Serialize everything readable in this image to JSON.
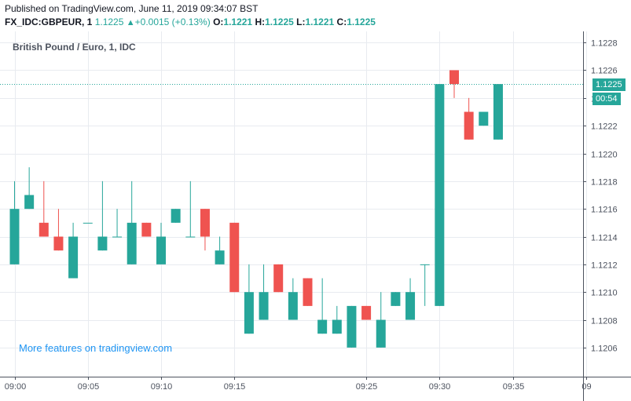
{
  "header": {
    "published": "Published on TradingView.com, June 11, 2019 09:34:07 BST",
    "symbol": "FX_IDC:GBPEUR, 1",
    "last": "1.1225",
    "change": "+0.0015 (+0.13%)",
    "o_label": "O:",
    "o_value": "1.1221",
    "h_label": "H:",
    "h_value": "1.1225",
    "l_label": "L:",
    "l_value": "1.1221",
    "c_label": "C:",
    "c_value": "1.1225"
  },
  "legend": "British Pound / Euro, 1, IDC",
  "promo": "More features on tradingview.com",
  "price_badge": "1.1225",
  "countdown_badge": "00:54",
  "colors": {
    "up": "#26a69a",
    "down": "#ef5350",
    "grid": "#e8ebf0",
    "axis": "#4c525e",
    "promo": "#2196f3"
  },
  "chart_data": {
    "type": "candlestick",
    "title": "British Pound / Euro, 1, IDC",
    "ylim": [
      1.1204,
      1.1229
    ],
    "y_ticks": [
      "1.1206",
      "1.1208",
      "1.1210",
      "1.1212",
      "1.1214",
      "1.1216",
      "1.1218",
      "1.1220",
      "1.1222",
      "1.1224",
      "1.1226",
      "1.1228"
    ],
    "x_ticks": [
      {
        "label": "09:00",
        "index": 0
      },
      {
        "label": "09:05",
        "index": 5
      },
      {
        "label": "09:10",
        "index": 10
      },
      {
        "label": "09:15",
        "index": 15
      },
      {
        "label": "09:25",
        "index": 24
      },
      {
        "label": "09:30",
        "index": 29
      },
      {
        "label": "09:35",
        "index": 34
      },
      {
        "label": "09",
        "index": 39
      }
    ],
    "last_price": 1.1225,
    "grid": true,
    "candles": [
      {
        "o": 1.1212,
        "h": 1.1218,
        "l": 1.1212,
        "c": 1.1216
      },
      {
        "o": 1.1216,
        "h": 1.1219,
        "l": 1.1216,
        "c": 1.1217
      },
      {
        "o": 1.1215,
        "h": 1.1218,
        "l": 1.1214,
        "c": 1.1214
      },
      {
        "o": 1.1214,
        "h": 1.1216,
        "l": 1.1213,
        "c": 1.1213
      },
      {
        "o": 1.1211,
        "h": 1.1215,
        "l": 1.1211,
        "c": 1.1214
      },
      {
        "o": 1.1215,
        "h": 1.1215,
        "l": 1.1215,
        "c": 1.1215
      },
      {
        "o": 1.1213,
        "h": 1.1218,
        "l": 1.1213,
        "c": 1.1214
      },
      {
        "o": 1.1214,
        "h": 1.1216,
        "l": 1.1214,
        "c": 1.1214
      },
      {
        "o": 1.1212,
        "h": 1.1218,
        "l": 1.1212,
        "c": 1.1215
      },
      {
        "o": 1.1215,
        "h": 1.1215,
        "l": 1.1214,
        "c": 1.1214
      },
      {
        "o": 1.1212,
        "h": 1.1215,
        "l": 1.1212,
        "c": 1.1214
      },
      {
        "o": 1.1215,
        "h": 1.1216,
        "l": 1.1215,
        "c": 1.1216
      },
      {
        "o": 1.1214,
        "h": 1.1218,
        "l": 1.1214,
        "c": 1.1214
      },
      {
        "o": 1.1216,
        "h": 1.1216,
        "l": 1.1213,
        "c": 1.1214
      },
      {
        "o": 1.1212,
        "h": 1.1214,
        "l": 1.1212,
        "c": 1.1213
      },
      {
        "o": 1.1215,
        "h": 1.1215,
        "l": 1.121,
        "c": 1.121
      },
      {
        "o": 1.1207,
        "h": 1.1212,
        "l": 1.1207,
        "c": 1.121
      },
      {
        "o": 1.1208,
        "h": 1.1212,
        "l": 1.1208,
        "c": 1.121
      },
      {
        "o": 1.1212,
        "h": 1.1212,
        "l": 1.121,
        "c": 1.121
      },
      {
        "o": 1.1208,
        "h": 1.1211,
        "l": 1.1208,
        "c": 1.121
      },
      {
        "o": 1.1211,
        "h": 1.1211,
        "l": 1.1209,
        "c": 1.1209
      },
      {
        "o": 1.1207,
        "h": 1.1211,
        "l": 1.1207,
        "c": 1.1208
      },
      {
        "o": 1.1207,
        "h": 1.1209,
        "l": 1.1207,
        "c": 1.1208
      },
      {
        "o": 1.1206,
        "h": 1.1209,
        "l": 1.1206,
        "c": 1.1209
      },
      {
        "o": 1.1209,
        "h": 1.1209,
        "l": 1.1208,
        "c": 1.1208
      },
      {
        "o": 1.1206,
        "h": 1.121,
        "l": 1.1206,
        "c": 1.1208
      },
      {
        "o": 1.1209,
        "h": 1.121,
        "l": 1.1209,
        "c": 1.121
      },
      {
        "o": 1.1208,
        "h": 1.1211,
        "l": 1.1208,
        "c": 1.121
      },
      {
        "o": 1.1212,
        "h": 1.1212,
        "l": 1.1209,
        "c": 1.1212
      },
      {
        "o": 1.1209,
        "h": 1.1225,
        "l": 1.1209,
        "c": 1.1225
      },
      {
        "o": 1.1226,
        "h": 1.1226,
        "l": 1.1224,
        "c": 1.1225
      },
      {
        "o": 1.1223,
        "h": 1.1224,
        "l": 1.1221,
        "c": 1.1221
      },
      {
        "o": 1.1222,
        "h": 1.1223,
        "l": 1.1222,
        "c": 1.1223
      },
      {
        "o": 1.1221,
        "h": 1.1225,
        "l": 1.1221,
        "c": 1.1225
      }
    ]
  }
}
